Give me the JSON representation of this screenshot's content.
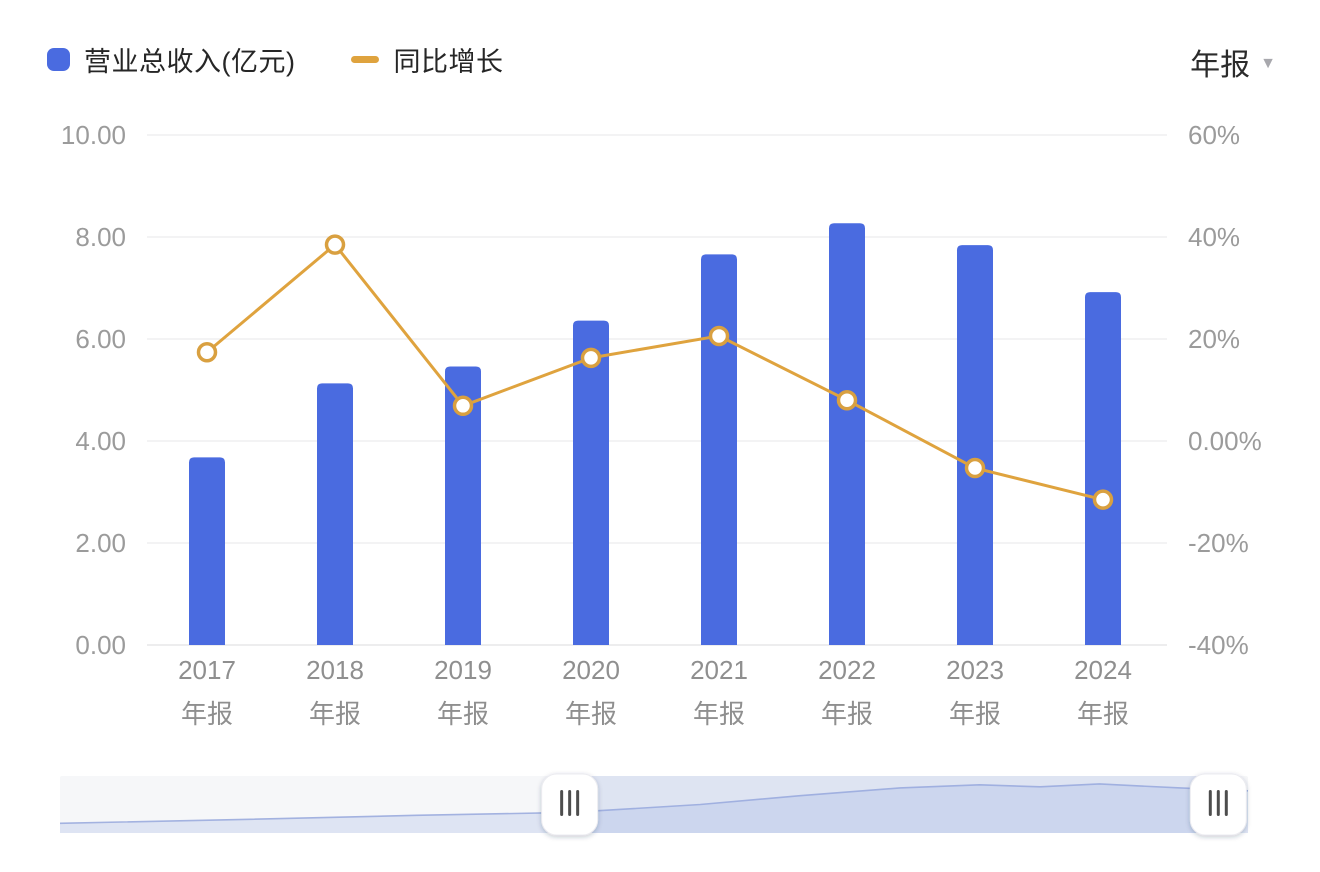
{
  "legend": {
    "items": [
      {
        "label": "营业总收入(亿元)",
        "marker": "square",
        "color": "#4a6be0"
      },
      {
        "label": "同比增长",
        "marker": "dash",
        "color": "#dfa33e"
      }
    ]
  },
  "selector": {
    "label": "年报",
    "caret_icon": "chevron-down"
  },
  "chart_data": {
    "type": "combo",
    "categories": [
      "2017",
      "2018",
      "2019",
      "2020",
      "2021",
      "2022",
      "2023",
      "2024"
    ],
    "category_sublabel": "年报",
    "series": [
      {
        "name": "营业总收入(亿元)",
        "type": "bar",
        "axis": "left",
        "color": "#4a6be0",
        "values": [
          3.68,
          5.13,
          5.46,
          6.36,
          7.66,
          8.27,
          7.84,
          6.92
        ]
      },
      {
        "name": "同比增长",
        "type": "line",
        "axis": "right",
        "color": "#dfa33e",
        "unit": "%",
        "values": [
          17.4,
          38.5,
          6.9,
          16.3,
          20.6,
          8.0,
          -5.3,
          -11.5
        ]
      }
    ],
    "left_axis": {
      "min": 0,
      "max": 10,
      "ticks": [
        "10.00",
        "8.00",
        "6.00",
        "4.00",
        "2.00",
        "0.00"
      ]
    },
    "right_axis": {
      "min": -40,
      "max": 60,
      "ticks": [
        "60%",
        "40%",
        "20%",
        "0.00%",
        "-20%",
        "-40%"
      ]
    },
    "grid": true,
    "legend_position": "top-left"
  },
  "slider": {
    "curve": [
      [
        0,
        0.17
      ],
      [
        0.16,
        0.24
      ],
      [
        0.3,
        0.31
      ],
      [
        0.429,
        0.36
      ],
      [
        0.539,
        0.5
      ],
      [
        0.623,
        0.655
      ],
      [
        0.707,
        0.79
      ],
      [
        0.774,
        0.845
      ],
      [
        0.825,
        0.81
      ],
      [
        0.875,
        0.86
      ],
      [
        0.943,
        0.79
      ],
      [
        1,
        0.74
      ]
    ],
    "selection": [
      0.429,
      0.975
    ],
    "handle_grip": "|||"
  },
  "colors": {
    "bar": "#4a6be0",
    "line": "#dfa33e",
    "marker_ring": "#d9a040",
    "grid": "#ececee",
    "axis_line": "#e2e2e4",
    "axis_text": "#9b9b9b",
    "x_text": "#8f8f8f",
    "slider_bg": "#f6f7f9",
    "slider_fill": "#dee4f3",
    "slider_line": "#a3b2e0",
    "slider_window": "rgba(150,170,225,0.25)",
    "handle_grip_color": "#4d4d4d"
  }
}
